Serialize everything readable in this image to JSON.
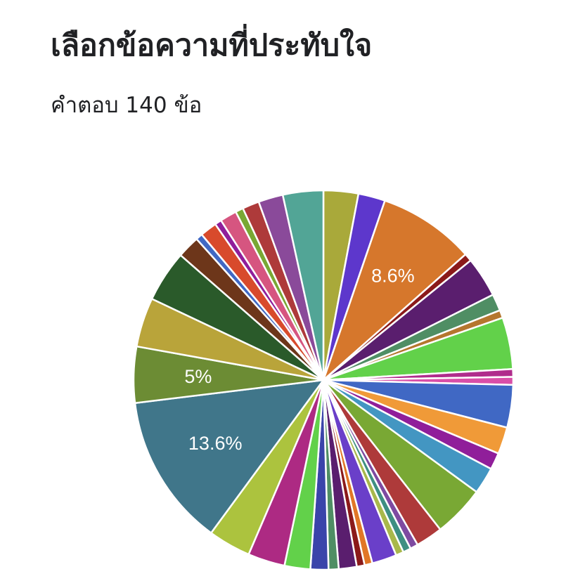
{
  "title": "เลือกข้อความที่ประทับใจ",
  "response_count": "คำตอบ 140 ข้อ",
  "chart_data": {
    "type": "pie",
    "title": "เลือกข้อความที่ประทับใจ",
    "slices": [
      {
        "value": 3.1,
        "color": "#a9a93a"
      },
      {
        "value": 2.4,
        "color": "#5d37cc"
      },
      {
        "value": 8.6,
        "color": "#d6772c",
        "label": "8.6%"
      },
      {
        "value": 0.7,
        "color": "#8b1a1a"
      },
      {
        "value": 3.6,
        "color": "#5a1e6e"
      },
      {
        "value": 1.5,
        "color": "#4f8e64"
      },
      {
        "value": 0.7,
        "color": "#b5762e"
      },
      {
        "value": 4.6,
        "color": "#62d14a"
      },
      {
        "value": 0.7,
        "color": "#b02c8c"
      },
      {
        "value": 0.7,
        "color": "#d94fa8"
      },
      {
        "value": 3.8,
        "color": "#4068c4"
      },
      {
        "value": 2.4,
        "color": "#f09a38"
      },
      {
        "value": 1.5,
        "color": "#901e9a"
      },
      {
        "value": 2.4,
        "color": "#4396c2"
      },
      {
        "value": 4.6,
        "color": "#79a834"
      },
      {
        "value": 2.4,
        "color": "#ae3a3a"
      },
      {
        "value": 0.7,
        "color": "#7e4aa1"
      },
      {
        "value": 0.7,
        "color": "#3e8f82"
      },
      {
        "value": 0.7,
        "color": "#a9b84b"
      },
      {
        "value": 2.2,
        "color": "#6a3fc9"
      },
      {
        "value": 0.7,
        "color": "#e17727"
      },
      {
        "value": 0.7,
        "color": "#8b1a1a"
      },
      {
        "value": 1.6,
        "color": "#5a1e6e"
      },
      {
        "value": 0.9,
        "color": "#4f8e64"
      },
      {
        "value": 1.6,
        "color": "#3a44aa"
      },
      {
        "value": 2.3,
        "color": "#62d14a"
      },
      {
        "value": 3.3,
        "color": "#ad2a83"
      },
      {
        "value": 3.8,
        "color": "#acc33e"
      },
      {
        "value": 13.6,
        "color": "#40768a",
        "label": "13.6%"
      },
      {
        "value": 5.0,
        "color": "#6c8c34",
        "label": "5%"
      },
      {
        "value": 4.4,
        "color": "#b9a43a"
      },
      {
        "value": 4.6,
        "color": "#2a5a2a"
      },
      {
        "value": 2.0,
        "color": "#6d361a"
      },
      {
        "value": 0.6,
        "color": "#4068c4"
      },
      {
        "value": 1.5,
        "color": "#d84a2c"
      },
      {
        "value": 0.6,
        "color": "#901e9a"
      },
      {
        "value": 1.5,
        "color": "#d65580"
      },
      {
        "value": 0.7,
        "color": "#79a834"
      },
      {
        "value": 1.5,
        "color": "#ae3a3a"
      },
      {
        "value": 2.2,
        "color": "#8a4a9a"
      },
      {
        "value": 3.6,
        "color": "#52a596"
      }
    ]
  }
}
